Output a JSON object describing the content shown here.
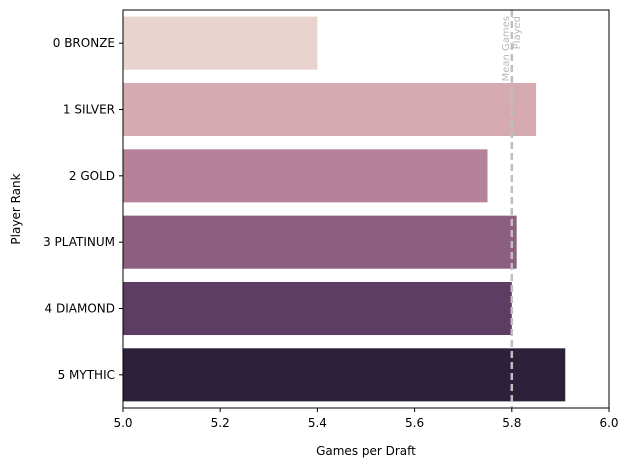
{
  "chart_data": {
    "type": "bar",
    "orientation": "horizontal",
    "title": "",
    "xlabel": "Games per Draft",
    "ylabel": "Player Rank",
    "xlim": [
      5.0,
      6.0
    ],
    "x_ticks": [
      5.0,
      5.2,
      5.4,
      5.6,
      5.8,
      6.0
    ],
    "x_tick_labels": [
      "5.0",
      "5.2",
      "5.4",
      "5.6",
      "5.8",
      "6.0"
    ],
    "grid": false,
    "legend": "none",
    "categories": [
      "0 BRONZE",
      "1 SILVER",
      "2 GOLD",
      "3 PLATINUM",
      "4 DIAMOND",
      "5 MYTHIC"
    ],
    "values": [
      5.4,
      5.85,
      5.75,
      5.81,
      5.8,
      5.91
    ],
    "colors": [
      "#e8d3cf",
      "#d5aab0",
      "#b68299",
      "#8c5f80",
      "#5d3d64",
      "#2d203a"
    ],
    "reference_line": {
      "value": 5.8,
      "label_lines": [
        "Mean Games",
        "Played"
      ],
      "color": "#bfbfbf",
      "style": "dashed"
    }
  }
}
